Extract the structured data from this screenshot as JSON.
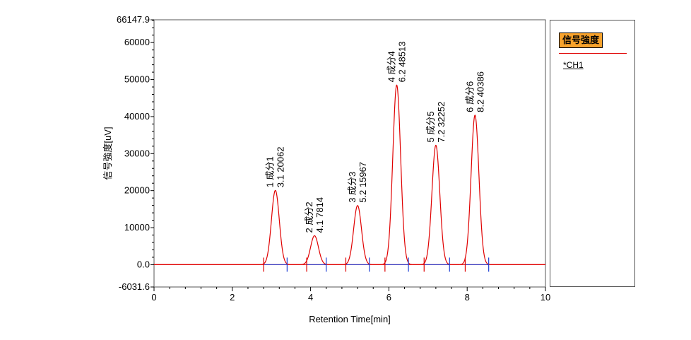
{
  "chart_data": {
    "type": "line",
    "xlabel": "Retention Time[min]",
    "ylabel": "信号強度[uV]",
    "xlim": [
      0,
      10
    ],
    "ylim": [
      -6031.6,
      66147.9
    ],
    "x_ticks": [
      0,
      2,
      4,
      6,
      8,
      10
    ],
    "y_ticks": [
      -6031.6,
      0,
      10000,
      20000,
      30000,
      40000,
      50000,
      60000,
      66147.9
    ],
    "y_tick_labels": [
      "-6031.6",
      "0.0",
      "10000",
      "20000",
      "30000",
      "40000",
      "50000",
      "60000",
      "66147.9"
    ],
    "grid": false,
    "legend_position": "right",
    "line_color": "#e00000",
    "marker_color_start": "#e00000",
    "marker_color_end": "#1f3fd6",
    "series": [
      {
        "name": "*CH1",
        "peaks": [
          {
            "id": "1",
            "name": "成分1",
            "rt": 3.1,
            "height": 20062,
            "label_line1": "1 成分1",
            "label_line2": "3.1 20062",
            "start": 2.8,
            "end": 3.4,
            "sigma": 0.1
          },
          {
            "id": "2",
            "name": "成分2",
            "rt": 4.1,
            "height": 7814,
            "label_line1": "2 成分2",
            "label_line2": "4.1 7814",
            "start": 3.9,
            "end": 4.4,
            "sigma": 0.1
          },
          {
            "id": "3",
            "name": "成分3",
            "rt": 5.2,
            "height": 15967,
            "label_line1": "3 成分3",
            "label_line2": "5.2 15967",
            "start": 4.9,
            "end": 5.5,
            "sigma": 0.1
          },
          {
            "id": "4",
            "name": "成分4",
            "rt": 6.2,
            "height": 48513,
            "label_line1": "4 成分4",
            "label_line2": "6.2 48513",
            "start": 5.9,
            "end": 6.5,
            "sigma": 0.1
          },
          {
            "id": "5",
            "name": "成分5",
            "rt": 7.2,
            "height": 32252,
            "label_line1": "5 成分5",
            "label_line2": "7.2 32252",
            "start": 6.9,
            "end": 7.55,
            "sigma": 0.1
          },
          {
            "id": "6",
            "name": "成分6",
            "rt": 8.2,
            "height": 40386,
            "label_line1": "6 成分6",
            "label_line2": "8.2 40386",
            "start": 7.95,
            "end": 8.55,
            "sigma": 0.1
          }
        ]
      }
    ]
  },
  "legend": {
    "title": "信号強度",
    "series_label": "*CH1"
  }
}
